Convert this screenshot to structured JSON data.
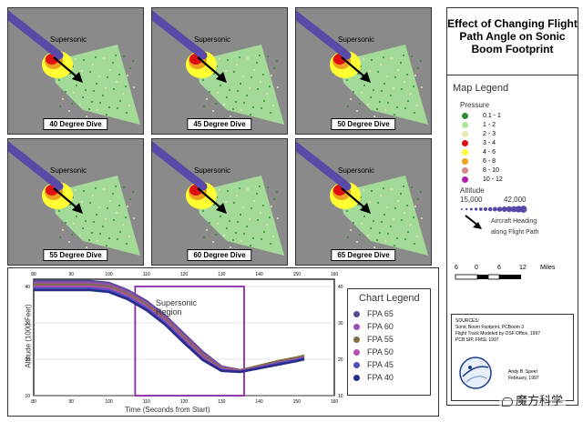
{
  "title": "Effect of Changing Flight Path Angle on Sonic Boom Footprint",
  "panels": [
    {
      "label": "40 Degree Dive",
      "region_label": "Supersonic"
    },
    {
      "label": "45 Degree Dive",
      "region_label": "Supersonic"
    },
    {
      "label": "50 Degree Dive",
      "region_label": "Supersonic"
    },
    {
      "label": "55 Degree Dive",
      "region_label": "Supersonic"
    },
    {
      "label": "60 Degree Dive",
      "region_label": "Supersonic"
    },
    {
      "label": "65 Degree Dive",
      "region_label": "Supersonic"
    }
  ],
  "map_legend": {
    "title": "Map Legend",
    "pressure_title": "Pressure",
    "pressure_items": [
      {
        "label": "0.1 - 1",
        "color": "#2e8b2e"
      },
      {
        "label": "1 - 2",
        "color": "#a8e89a"
      },
      {
        "label": "2 - 3",
        "color": "#e8e8b0"
      },
      {
        "label": "3 - 4",
        "color": "#e01010"
      },
      {
        "label": "4 - 6",
        "color": "#ffff33"
      },
      {
        "label": "6 - 8",
        "color": "#f0a020"
      },
      {
        "label": "8 - 10",
        "color": "#d88888"
      },
      {
        "label": "10 - 12",
        "color": "#b020b0"
      }
    ],
    "altitude_title": "Altitude",
    "altitude_min": "15,000",
    "altitude_max": "42,000",
    "heading_label_1": "Aircraft Heading",
    "heading_label_2": "along Flight Path",
    "scale_ticks": [
      "6",
      "0",
      "6",
      "12"
    ],
    "scale_unit": "Miles"
  },
  "sources": {
    "title": "SOURCES:",
    "line1": "Sonic Boom Footprint, PCBoom 3",
    "line2": "Flight Track Modeled by OSF Office, 1997",
    "line3": "PCB SIP, FMSL 1997",
    "credit1": "Andy B. Speer",
    "credit2": "February, 1997"
  },
  "watermark": "魔方科学",
  "chart_legend": {
    "title": "Chart Legend",
    "items": [
      {
        "label": "FPA 65",
        "color": "#5a4a9a"
      },
      {
        "label": "FPA 60",
        "color": "#9a50b0"
      },
      {
        "label": "FPA 55",
        "color": "#7a7040"
      },
      {
        "label": "FPA 50",
        "color": "#b050b0"
      },
      {
        "label": "FPA 45",
        "color": "#5050c0"
      },
      {
        "label": "FPA 40",
        "color": "#2a2a8a"
      }
    ]
  },
  "chart_data": {
    "type": "line",
    "xlabel": "Time (Seconds from Start)",
    "ylabel": "Altitude (1000 Feet)",
    "xlim": [
      80,
      160
    ],
    "ylim": [
      10,
      42
    ],
    "x_ticks": [
      "80",
      "90",
      "100",
      "110",
      "120",
      "130",
      "140",
      "150",
      "160"
    ],
    "y_ticks": [
      "10",
      "20",
      "30",
      "40"
    ],
    "annotation": "Supersonic Region",
    "supersonic_region": {
      "x_start": 107,
      "x_end": 136,
      "y_top": 40
    },
    "series": [
      {
        "name": "FPA 65",
        "x": [
          80,
          95,
          100,
          105,
          110,
          115,
          120,
          125,
          130,
          135,
          140,
          145,
          150,
          152
        ],
        "y": [
          41.5,
          41.5,
          41,
          39,
          36,
          32,
          27,
          22,
          18,
          17,
          18,
          19,
          20,
          20
        ]
      },
      {
        "name": "FPA 60",
        "x": [
          80,
          95,
          100,
          105,
          110,
          115,
          120,
          125,
          130,
          135,
          140,
          145,
          150,
          152
        ],
        "y": [
          41,
          41,
          40.5,
          38.5,
          35.5,
          31.5,
          26.5,
          21.5,
          17.8,
          17,
          18,
          19.2,
          20.2,
          20.5
        ]
      },
      {
        "name": "FPA 55",
        "x": [
          80,
          95,
          100,
          105,
          110,
          115,
          120,
          125,
          130,
          135,
          140,
          145,
          150,
          152
        ],
        "y": [
          40.5,
          40.5,
          40,
          38,
          35,
          31,
          26,
          21,
          17.5,
          17,
          18.2,
          19.5,
          20.5,
          21
        ]
      },
      {
        "name": "FPA 50",
        "x": [
          80,
          95,
          100,
          105,
          110,
          115,
          120,
          125,
          130,
          135,
          140,
          145,
          150,
          152
        ],
        "y": [
          40,
          40,
          39.5,
          37.5,
          34.5,
          30.5,
          25.5,
          20.5,
          17.2,
          16.8,
          17.8,
          19,
          20,
          20.5
        ]
      },
      {
        "name": "FPA 45",
        "x": [
          80,
          95,
          100,
          105,
          110,
          115,
          120,
          125,
          130,
          135,
          140,
          145,
          150,
          152
        ],
        "y": [
          39.5,
          39.5,
          39,
          37,
          34,
          30,
          25,
          20,
          17,
          16.6,
          17.6,
          18.8,
          19.8,
          20.2
        ]
      },
      {
        "name": "FPA 40",
        "x": [
          80,
          95,
          100,
          105,
          110,
          115,
          120,
          125,
          130,
          135,
          140,
          145,
          150,
          152
        ],
        "y": [
          39,
          39,
          38.5,
          36.5,
          33.5,
          29.5,
          24.5,
          19.8,
          16.8,
          16.5,
          17.5,
          18.5,
          19.5,
          20
        ]
      }
    ]
  }
}
